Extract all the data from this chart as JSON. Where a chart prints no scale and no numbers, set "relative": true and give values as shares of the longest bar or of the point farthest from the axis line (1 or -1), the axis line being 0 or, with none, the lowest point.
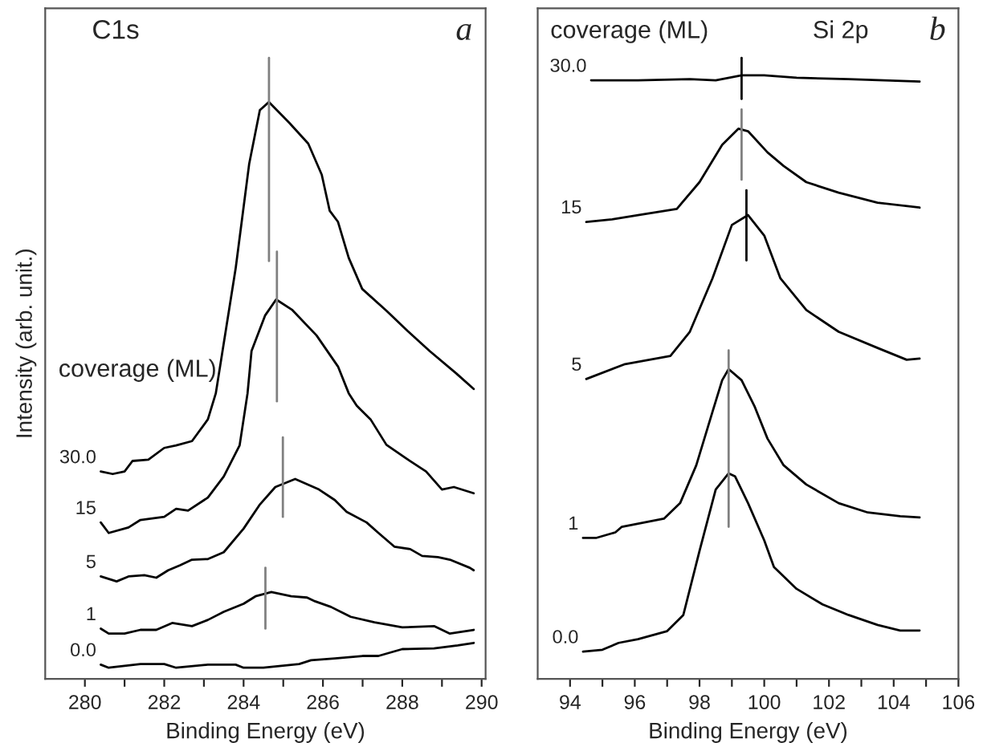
{
  "chart_data": [
    {
      "type": "line",
      "relative": true,
      "title": "C1s",
      "xlabel": "Binding Energy (eV)",
      "ylabel": "Intensity (arb. unit.)",
      "annotations": [
        "coverage (ML)",
        "a"
      ],
      "xlim": [
        279,
        290.1
      ],
      "xticks": [
        280,
        {
          "value": 281,
          "label": null
        },
        282,
        {
          "value": 283,
          "label": null
        },
        284,
        {
          "value": 285,
          "label": null
        },
        286,
        {
          "value": 287,
          "label": null
        },
        288,
        {
          "value": 289,
          "label": null
        },
        290
      ],
      "grid": false,
      "legend": false,
      "marker": "none",
      "line_style": "solid",
      "series": [
        {
          "name": "30.0",
          "color": "#000000",
          "x": [
            280.4,
            280.7,
            281.0,
            281.2,
            281.6,
            282.0,
            282.3,
            282.7,
            283.1,
            283.3,
            283.8,
            284.14,
            284.41,
            284.64,
            285.16,
            285.63,
            285.97,
            286.17,
            286.38,
            286.65,
            286.99,
            287.6,
            288.14,
            288.69,
            289.36,
            289.8
          ],
          "values": [
            0.334,
            0.33,
            0.334,
            0.351,
            0.353,
            0.372,
            0.376,
            0.383,
            0.418,
            0.46,
            0.661,
            0.829,
            0.916,
            0.929,
            0.895,
            0.862,
            0.812,
            0.754,
            0.736,
            0.678,
            0.628,
            0.593,
            0.56,
            0.528,
            0.492,
            0.467
          ]
        },
        {
          "name": "15",
          "color": "#000000",
          "x": [
            280.4,
            280.6,
            281.1,
            281.4,
            282.0,
            282.3,
            282.6,
            283.1,
            283.5,
            283.9,
            284.1,
            284.2,
            284.54,
            284.82,
            285.23,
            285.84,
            286.38,
            286.65,
            286.85,
            287.2,
            287.6,
            288.1,
            288.6,
            289.0,
            289.3,
            289.8
          ],
          "values": [
            0.252,
            0.235,
            0.244,
            0.256,
            0.261,
            0.274,
            0.271,
            0.292,
            0.326,
            0.376,
            0.46,
            0.528,
            0.585,
            0.611,
            0.594,
            0.553,
            0.503,
            0.46,
            0.44,
            0.418,
            0.377,
            0.355,
            0.334,
            0.305,
            0.309,
            0.299
          ]
        },
        {
          "name": "5",
          "color": "#000000",
          "x": [
            280.4,
            280.8,
            281.1,
            281.5,
            281.8,
            282.1,
            282.4,
            282.7,
            283.1,
            283.5,
            284.0,
            284.4,
            284.8,
            285.3,
            285.9,
            286.3,
            286.6,
            287.1,
            287.4,
            287.8,
            288.2,
            288.5,
            288.9,
            289.2,
            289.7,
            289.8
          ],
          "values": [
            0.165,
            0.157,
            0.165,
            0.167,
            0.163,
            0.175,
            0.183,
            0.192,
            0.193,
            0.204,
            0.242,
            0.28,
            0.309,
            0.322,
            0.305,
            0.288,
            0.269,
            0.252,
            0.235,
            0.213,
            0.209,
            0.198,
            0.196,
            0.192,
            0.179,
            0.175
          ]
        },
        {
          "name": "1",
          "color": "#000000",
          "x": [
            280.4,
            280.6,
            281.0,
            281.4,
            281.8,
            282.2,
            282.7,
            283.1,
            283.5,
            284.0,
            284.3,
            284.7,
            285.2,
            285.6,
            285.8,
            286.2,
            286.7,
            287.3,
            288.0,
            288.8,
            289.2,
            289.8
          ],
          "values": [
            0.081,
            0.073,
            0.073,
            0.079,
            0.079,
            0.09,
            0.085,
            0.095,
            0.108,
            0.121,
            0.133,
            0.14,
            0.133,
            0.131,
            0.125,
            0.116,
            0.1,
            0.091,
            0.083,
            0.085,
            0.073,
            0.079
          ]
        },
        {
          "name": "0.0",
          "color": "#000000",
          "x": [
            280.4,
            280.6,
            281.4,
            282.0,
            282.3,
            283.1,
            283.8,
            284.0,
            284.5,
            285.4,
            285.7,
            286.3,
            287.0,
            287.4,
            288.0,
            288.8,
            289.4,
            289.8
          ],
          "values": [
            0.023,
            0.018,
            0.024,
            0.024,
            0.018,
            0.023,
            0.023,
            0.018,
            0.018,
            0.024,
            0.03,
            0.033,
            0.037,
            0.037,
            0.048,
            0.049,
            0.054,
            0.058
          ]
        },
        {
          "color": "#808080",
          "x": [
            284.64,
            284.64
          ],
          "values": [
            1.0,
            0.673
          ]
        },
        {
          "color": "#808080",
          "x": [
            284.84,
            284.84
          ],
          "values": [
            0.688,
            0.447
          ]
        },
        {
          "color": "#808080",
          "x": [
            284.99,
            284.99
          ],
          "values": [
            0.389,
            0.261
          ]
        },
        {
          "color": "#808080",
          "x": [
            284.55,
            284.55
          ],
          "values": [
            0.179,
            0.081
          ]
        }
      ]
    },
    {
      "type": "line",
      "relative": true,
      "title": "Si 2p",
      "xlabel": "Binding Energy (eV)",
      "annotations": [
        "coverage (ML)",
        "b"
      ],
      "xlim": [
        93,
        106
      ],
      "xticks": [
        94,
        {
          "value": 95,
          "label": null
        },
        96,
        {
          "value": 97,
          "label": null
        },
        98,
        {
          "value": 99,
          "label": null
        },
        100,
        {
          "value": 101,
          "label": null
        },
        102,
        {
          "value": 103,
          "label": null
        },
        104,
        {
          "value": 105,
          "label": null
        },
        106
      ],
      "grid": false,
      "legend": false,
      "marker": "none",
      "line_style": "solid",
      "series": [
        {
          "name": "30.0",
          "color": "#000000",
          "x": [
            94.65,
            96.1,
            97.7,
            98.5,
            99.3,
            100.0,
            101.0,
            102.6,
            104.8
          ],
          "values": [
            0.964,
            0.964,
            0.966,
            0.964,
            0.972,
            0.972,
            0.968,
            0.966,
            0.962
          ]
        },
        {
          "name": "15",
          "color": "#000000",
          "x": [
            94.5,
            95.3,
            96.1,
            97.3,
            98.0,
            98.7,
            99.2,
            99.5,
            100.1,
            100.6,
            101.3,
            102.3,
            103.5,
            104.8
          ],
          "values": [
            0.736,
            0.74,
            0.747,
            0.757,
            0.8,
            0.86,
            0.886,
            0.882,
            0.848,
            0.826,
            0.8,
            0.783,
            0.767,
            0.759
          ]
        },
        {
          "name": "5",
          "color": "#000000",
          "x": [
            94.5,
            95.7,
            97.1,
            97.7,
            98.4,
            99.0,
            99.5,
            100.0,
            100.5,
            101.3,
            102.3,
            103.5,
            104.4,
            104.8
          ],
          "values": [
            0.483,
            0.507,
            0.52,
            0.559,
            0.645,
            0.731,
            0.747,
            0.714,
            0.645,
            0.594,
            0.559,
            0.533,
            0.514,
            0.516
          ]
        },
        {
          "name": "1",
          "color": "#000000",
          "x": [
            94.4,
            94.8,
            95.4,
            95.6,
            96.9,
            97.4,
            97.9,
            98.4,
            98.7,
            98.9,
            99.3,
            99.7,
            100.1,
            100.6,
            101.3,
            102.3,
            103.2,
            104.2,
            104.8
          ],
          "values": [
            0.227,
            0.227,
            0.236,
            0.245,
            0.258,
            0.283,
            0.344,
            0.43,
            0.481,
            0.499,
            0.481,
            0.439,
            0.387,
            0.344,
            0.313,
            0.283,
            0.268,
            0.262,
            0.26
          ]
        },
        {
          "name": "0.0",
          "color": "#000000",
          "x": [
            94.4,
            95.0,
            95.5,
            96.1,
            97.0,
            97.5,
            98.0,
            98.5,
            98.9,
            99.1,
            99.5,
            100.0,
            100.3,
            101.0,
            101.8,
            102.6,
            103.5,
            104.2,
            104.8
          ],
          "values": [
            0.044,
            0.047,
            0.058,
            0.064,
            0.077,
            0.103,
            0.206,
            0.305,
            0.331,
            0.326,
            0.283,
            0.223,
            0.18,
            0.145,
            0.12,
            0.103,
            0.087,
            0.078,
            0.078
          ]
        },
        {
          "color": "#000000",
          "x": [
            99.3,
            99.3
          ],
          "values": [
            1.0,
            0.934
          ]
        },
        {
          "color": "#808080",
          "x": [
            99.3,
            99.3
          ],
          "values": [
            0.917,
            0.804
          ]
        },
        {
          "color": "#000000",
          "x": [
            99.45,
            99.45
          ],
          "values": [
            0.787,
            0.674
          ]
        },
        {
          "color": "#808080",
          "x": [
            98.9,
            98.9
          ],
          "values": [
            0.529,
            0.245
          ]
        }
      ]
    }
  ]
}
